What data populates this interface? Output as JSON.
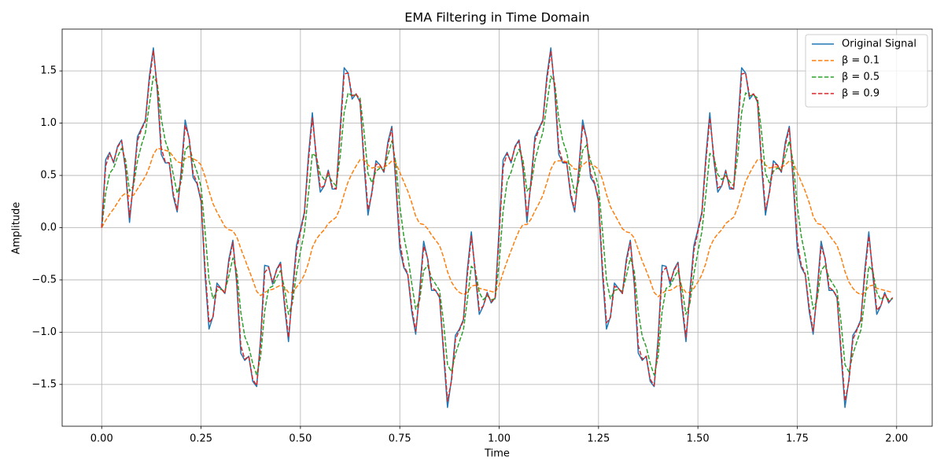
{
  "chart_data": {
    "type": "line",
    "title": "EMA Filtering in Time Domain",
    "x_label": "Time",
    "y_label": "Amplitude",
    "x": [
      0,
      0.01,
      0.02,
      0.03,
      0.04,
      0.05,
      0.06,
      0.07,
      0.08,
      0.09,
      0.1,
      0.11,
      0.12,
      0.13,
      0.14,
      0.15,
      0.16,
      0.17,
      0.18,
      0.19,
      0.2,
      0.21,
      0.22,
      0.23,
      0.24,
      0.25,
      0.26,
      0.27,
      0.28,
      0.29,
      0.3,
      0.31,
      0.32,
      0.33,
      0.34,
      0.35,
      0.36,
      0.37,
      0.38,
      0.39,
      0.4,
      0.41,
      0.42,
      0.43,
      0.44,
      0.45,
      0.46,
      0.47,
      0.48,
      0.49,
      0.5,
      0.51,
      0.52,
      0.53,
      0.54,
      0.55,
      0.56,
      0.57,
      0.58,
      0.59,
      0.6,
      0.61,
      0.62,
      0.63,
      0.64,
      0.65,
      0.66,
      0.67,
      0.68,
      0.69,
      0.7,
      0.71,
      0.72,
      0.73,
      0.74,
      0.75,
      0.76,
      0.77,
      0.78,
      0.79,
      0.8,
      0.81,
      0.82,
      0.83,
      0.84,
      0.85,
      0.86,
      0.87,
      0.88,
      0.89,
      0.9,
      0.91,
      0.92,
      0.93,
      0.94,
      0.95,
      0.96,
      0.97,
      0.98,
      0.99,
      1,
      1.01,
      1.02,
      1.03,
      1.04,
      1.05,
      1.06,
      1.07,
      1.08,
      1.09,
      1.1,
      1.11,
      1.12,
      1.13,
      1.14,
      1.15,
      1.16,
      1.17,
      1.18,
      1.19,
      1.2,
      1.21,
      1.22,
      1.23,
      1.24,
      1.25,
      1.26,
      1.27,
      1.28,
      1.29,
      1.3,
      1.31,
      1.32,
      1.33,
      1.34,
      1.35,
      1.36,
      1.37,
      1.38,
      1.39,
      1.4,
      1.41,
      1.42,
      1.43,
      1.44,
      1.45,
      1.46,
      1.47,
      1.48,
      1.49,
      1.5,
      1.51,
      1.52,
      1.53,
      1.54,
      1.55,
      1.56,
      1.57,
      1.58,
      1.59,
      1.6,
      1.61,
      1.62,
      1.63,
      1.64,
      1.65,
      1.66,
      1.67,
      1.68,
      1.69,
      1.7,
      1.71,
      1.72,
      1.73,
      1.74,
      1.75,
      1.76,
      1.77,
      1.78,
      1.79,
      1.8,
      1.81,
      1.82,
      1.83,
      1.84,
      1.85,
      1.86,
      1.87,
      1.88,
      1.89,
      1.9,
      1.91,
      1.92,
      1.93,
      1.94,
      1.95,
      1.96,
      1.97,
      1.98,
      1.99
    ],
    "series": [
      {
        "name": "Original Signal",
        "color": "#1f77b4",
        "linestyle": "solid",
        "values": [
          0,
          0.65,
          0.72,
          0.62,
          0.78,
          0.84,
          0.55,
          0.05,
          0.45,
          0.87,
          0.95,
          1.03,
          1.45,
          1.72,
          1.3,
          0.7,
          0.62,
          0.62,
          0.3,
          0.15,
          0.55,
          1.03,
          0.85,
          0.48,
          0.42,
          0.25,
          -0.45,
          -0.97,
          -0.85,
          -0.53,
          -0.58,
          -0.63,
          -0.3,
          -0.12,
          -0.55,
          -1.2,
          -1.27,
          -1.23,
          -1.47,
          -1.52,
          -1.05,
          -0.36,
          -0.37,
          -0.54,
          -0.4,
          -0.33,
          -0.75,
          -1.09,
          -0.6,
          -0.17,
          -0.02,
          0.15,
          0.68,
          1.1,
          0.65,
          0.34,
          0.4,
          0.55,
          0.37,
          0.37,
          0.95,
          1.53,
          1.48,
          1.23,
          1.28,
          1.2,
          0.6,
          0.12,
          0.35,
          0.64,
          0.6,
          0.53,
          0.82,
          0.97,
          0.42,
          -0.2,
          -0.38,
          -0.45,
          -0.8,
          -1.02,
          -0.6,
          -0.13,
          -0.3,
          -0.6,
          -0.6,
          -0.67,
          -1.2,
          -1.72,
          -1.45,
          -1.03,
          -0.97,
          -0.88,
          -0.4,
          -0.04,
          -0.45,
          -0.83,
          -0.75,
          -0.62,
          -0.72,
          -0.67,
          0,
          0.65,
          0.72,
          0.62,
          0.78,
          0.84,
          0.55,
          0.05,
          0.45,
          0.87,
          0.95,
          1.03,
          1.45,
          1.72,
          1.3,
          0.7,
          0.62,
          0.62,
          0.3,
          0.15,
          0.55,
          1.03,
          0.85,
          0.48,
          0.42,
          0.25,
          -0.45,
          -0.97,
          -0.85,
          -0.53,
          -0.58,
          -0.63,
          -0.3,
          -0.12,
          -0.55,
          -1.2,
          -1.27,
          -1.23,
          -1.47,
          -1.52,
          -1.05,
          -0.36,
          -0.37,
          -0.54,
          -0.4,
          -0.33,
          -0.75,
          -1.09,
          -0.6,
          -0.17,
          -0.02,
          0.15,
          0.68,
          1.1,
          0.65,
          0.34,
          0.4,
          0.55,
          0.37,
          0.37,
          0.95,
          1.53,
          1.48,
          1.23,
          1.28,
          1.2,
          0.6,
          0.12,
          0.35,
          0.64,
          0.6,
          0.53,
          0.82,
          0.97,
          0.42,
          -0.2,
          -0.38,
          -0.45,
          -0.8,
          -1.02,
          -0.6,
          -0.13,
          -0.3,
          -0.6,
          -0.6,
          -0.67,
          -1.2,
          -1.72,
          -1.45,
          -1.03,
          -0.97,
          -0.88,
          -0.4,
          -0.04,
          -0.45,
          -0.83,
          -0.75,
          -0.62,
          -0.72,
          -0.67
        ]
      },
      {
        "name": "β = 0.1",
        "color": "#ff7f0e",
        "linestyle": "dashed",
        "values": [
          0,
          0.07,
          0.13,
          0.18,
          0.24,
          0.3,
          0.33,
          0.3,
          0.31,
          0.37,
          0.43,
          0.49,
          0.58,
          0.7,
          0.76,
          0.75,
          0.74,
          0.73,
          0.68,
          0.63,
          0.62,
          0.66,
          0.68,
          0.66,
          0.64,
          0.6,
          0.49,
          0.35,
          0.23,
          0.15,
          0.08,
          0.01,
          -0.02,
          -0.03,
          -0.09,
          -0.2,
          -0.3,
          -0.4,
          -0.5,
          -0.61,
          -0.65,
          -0.62,
          -0.6,
          -0.59,
          -0.57,
          -0.55,
          -0.57,
          -0.62,
          -0.62,
          -0.57,
          -0.52,
          -0.45,
          -0.34,
          -0.19,
          -0.11,
          -0.06,
          -0.02,
          0.04,
          0.07,
          0.1,
          0.19,
          0.32,
          0.44,
          0.52,
          0.59,
          0.65,
          0.65,
          0.6,
          0.57,
          0.58,
          0.58,
          0.58,
          0.6,
          0.64,
          0.62,
          0.53,
          0.44,
          0.35,
          0.24,
          0.11,
          0.04,
          0.03,
          -0.01,
          -0.07,
          -0.12,
          -0.17,
          -0.28,
          -0.42,
          -0.52,
          -0.58,
          -0.62,
          -0.64,
          -0.62,
          -0.56,
          -0.55,
          -0.58,
          -0.59,
          -0.6,
          -0.61,
          -0.62,
          -0.55,
          -0.43,
          -0.32,
          -0.22,
          -0.12,
          -0.03,
          0.03,
          0.03,
          0.08,
          0.16,
          0.23,
          0.31,
          0.43,
          0.56,
          0.63,
          0.64,
          0.64,
          0.63,
          0.6,
          0.56,
          0.56,
          0.6,
          0.63,
          0.61,
          0.59,
          0.56,
          0.46,
          0.32,
          0.2,
          0.13,
          0.06,
          -0.01,
          -0.04,
          -0.05,
          -0.1,
          -0.21,
          -0.32,
          -0.41,
          -0.51,
          -0.62,
          -0.66,
          -0.63,
          -0.6,
          -0.6,
          -0.58,
          -0.55,
          -0.57,
          -0.62,
          -0.62,
          -0.58,
          -0.52,
          -0.45,
          -0.34,
          -0.19,
          -0.11,
          -0.06,
          -0.02,
          0.04,
          0.07,
          0.1,
          0.19,
          0.32,
          0.44,
          0.52,
          0.59,
          0.65,
          0.65,
          0.6,
          0.57,
          0.58,
          0.58,
          0.58,
          0.6,
          0.64,
          0.62,
          0.53,
          0.44,
          0.35,
          0.24,
          0.11,
          0.04,
          0.03,
          -0.01,
          -0.07,
          -0.12,
          -0.17,
          -0.28,
          -0.42,
          -0.52,
          -0.58,
          -0.62,
          -0.64,
          -0.62,
          -0.56,
          -0.55,
          -0.58,
          -0.59,
          -0.6,
          -0.61,
          -0.62
        ]
      },
      {
        "name": "β = 0.5",
        "color": "#2ca02c",
        "linestyle": "dashed",
        "values": [
          0,
          0.33,
          0.52,
          0.57,
          0.68,
          0.76,
          0.65,
          0.35,
          0.4,
          0.64,
          0.79,
          0.91,
          1.18,
          1.45,
          1.38,
          1.04,
          0.83,
          0.72,
          0.51,
          0.33,
          0.44,
          0.74,
          0.79,
          0.64,
          0.53,
          0.39,
          -0.03,
          -0.5,
          -0.68,
          -0.6,
          -0.59,
          -0.61,
          -0.46,
          -0.29,
          -0.42,
          -0.81,
          -1.04,
          -1.14,
          -1.3,
          -1.41,
          -1.23,
          -0.8,
          -0.58,
          -0.56,
          -0.48,
          -0.41,
          -0.58,
          -0.83,
          -0.72,
          -0.44,
          -0.23,
          -0.04,
          0.32,
          0.71,
          0.68,
          0.51,
          0.46,
          0.5,
          0.44,
          0.4,
          0.68,
          1.1,
          1.29,
          1.26,
          1.27,
          1.24,
          0.92,
          0.52,
          0.43,
          0.54,
          0.57,
          0.55,
          0.69,
          0.83,
          0.62,
          0.21,
          -0.08,
          -0.27,
          -0.53,
          -0.78,
          -0.69,
          -0.41,
          -0.36,
          -0.48,
          -0.54,
          -0.6,
          -0.9,
          -1.31,
          -1.38,
          -1.21,
          -1.09,
          -0.98,
          -0.69,
          -0.37,
          -0.41,
          -0.62,
          -0.69,
          -0.65,
          -0.69,
          -0.68,
          -0.34,
          0.16,
          0.44,
          0.53,
          0.66,
          0.75,
          0.65,
          0.35,
          0.4,
          0.64,
          0.79,
          0.91,
          1.18,
          1.45,
          1.38,
          1.04,
          0.83,
          0.72,
          0.51,
          0.33,
          0.44,
          0.74,
          0.79,
          0.64,
          0.53,
          0.39,
          -0.03,
          -0.5,
          -0.68,
          -0.6,
          -0.59,
          -0.61,
          -0.46,
          -0.29,
          -0.42,
          -0.81,
          -1.04,
          -1.14,
          -1.3,
          -1.41,
          -1.23,
          -0.8,
          -0.58,
          -0.56,
          -0.48,
          -0.41,
          -0.58,
          -0.83,
          -0.72,
          -0.44,
          -0.23,
          -0.04,
          0.32,
          0.71,
          0.68,
          0.51,
          0.46,
          0.5,
          0.44,
          0.4,
          0.68,
          1.1,
          1.29,
          1.26,
          1.27,
          1.24,
          0.92,
          0.52,
          0.43,
          0.54,
          0.57,
          0.55,
          0.69,
          0.83,
          0.62,
          0.21,
          -0.08,
          -0.27,
          -0.53,
          -0.78,
          -0.69,
          -0.41,
          -0.36,
          -0.48,
          -0.54,
          -0.6,
          -0.9,
          -1.31,
          -1.38,
          -1.21,
          -1.09,
          -0.98,
          -0.69,
          -0.37,
          -0.41,
          -0.62,
          -0.69,
          -0.65,
          -0.69,
          -0.68
        ]
      },
      {
        "name": "β = 0.9",
        "color": "#d62728",
        "linestyle": "dashed",
        "values": [
          0,
          0.59,
          0.71,
          0.63,
          0.77,
          0.83,
          0.58,
          0.1,
          0.42,
          0.83,
          0.94,
          1.02,
          1.41,
          1.69,
          1.34,
          0.76,
          0.63,
          0.62,
          0.33,
          0.17,
          0.51,
          0.98,
          0.86,
          0.52,
          0.43,
          0.27,
          -0.38,
          -0.91,
          -0.86,
          -0.56,
          -0.58,
          -0.63,
          -0.33,
          -0.14,
          -0.51,
          -1.13,
          -1.26,
          -1.23,
          -1.45,
          -1.51,
          -1.1,
          -0.43,
          -0.38,
          -0.52,
          -0.41,
          -0.34,
          -0.71,
          -1.05,
          -0.65,
          -0.22,
          -0.04,
          0.13,
          0.63,
          1.05,
          0.69,
          0.38,
          0.4,
          0.54,
          0.39,
          0.37,
          0.89,
          1.47,
          1.48,
          1.26,
          1.28,
          1.21,
          0.66,
          0.17,
          0.33,
          0.61,
          0.6,
          0.54,
          0.79,
          0.95,
          0.47,
          -0.13,
          -0.36,
          -0.44,
          -0.76,
          -0.99,
          -0.64,
          -0.18,
          -0.29,
          -0.57,
          -0.6,
          -0.66,
          -1.15,
          -1.66,
          -1.47,
          -1.07,
          -0.98,
          -0.89,
          -0.45,
          -0.08,
          -0.41,
          -0.79,
          -0.75,
          -0.63,
          -0.71,
          -0.67,
          -0.07,
          0.58,
          0.71,
          0.63,
          0.77,
          0.83,
          0.58,
          0.1,
          0.42,
          0.83,
          0.94,
          1.02,
          1.41,
          1.69,
          1.34,
          0.76,
          0.63,
          0.62,
          0.33,
          0.17,
          0.51,
          0.98,
          0.86,
          0.52,
          0.43,
          0.27,
          -0.38,
          -0.91,
          -0.86,
          -0.56,
          -0.58,
          -0.63,
          -0.33,
          -0.14,
          -0.51,
          -1.13,
          -1.26,
          -1.23,
          -1.45,
          -1.51,
          -1.1,
          -0.43,
          -0.38,
          -0.52,
          -0.41,
          -0.34,
          -0.71,
          -1.05,
          -0.65,
          -0.22,
          -0.04,
          0.13,
          0.63,
          1.05,
          0.69,
          0.38,
          0.4,
          0.54,
          0.39,
          0.37,
          0.89,
          1.47,
          1.48,
          1.26,
          1.28,
          1.21,
          0.66,
          0.17,
          0.33,
          0.61,
          0.6,
          0.54,
          0.79,
          0.95,
          0.47,
          -0.13,
          -0.36,
          -0.44,
          -0.76,
          -0.99,
          -0.64,
          -0.18,
          -0.29,
          -0.57,
          -0.6,
          -0.66,
          -1.15,
          -1.66,
          -1.47,
          -1.07,
          -0.98,
          -0.89,
          -0.45,
          -0.08,
          -0.41,
          -0.79,
          -0.75,
          -0.63,
          -0.71,
          -0.67
        ]
      }
    ],
    "xlim": [
      -0.0995,
      2.0895
    ],
    "ylim": [
      -1.9,
      1.9
    ],
    "xticks": [
      {
        "value": 0,
        "label": "0.00"
      },
      {
        "value": 0.25,
        "label": "0.25"
      },
      {
        "value": 0.5,
        "label": "0.50"
      },
      {
        "value": 0.75,
        "label": "0.75"
      },
      {
        "value": 1,
        "label": "1.00"
      },
      {
        "value": 1.25,
        "label": "1.25"
      },
      {
        "value": 1.5,
        "label": "1.50"
      },
      {
        "value": 1.75,
        "label": "1.75"
      },
      {
        "value": 2,
        "label": "2.00"
      }
    ],
    "yticks": [
      {
        "value": -1.5,
        "label": "−1.5"
      },
      {
        "value": -1,
        "label": "−1.0"
      },
      {
        "value": -0.5,
        "label": "−0.5"
      },
      {
        "value": 0,
        "label": "0.0"
      },
      0.5,
      {
        "value": 1,
        "label": "1.0"
      },
      1.5
    ],
    "grid": true,
    "legend": "upper right"
  }
}
